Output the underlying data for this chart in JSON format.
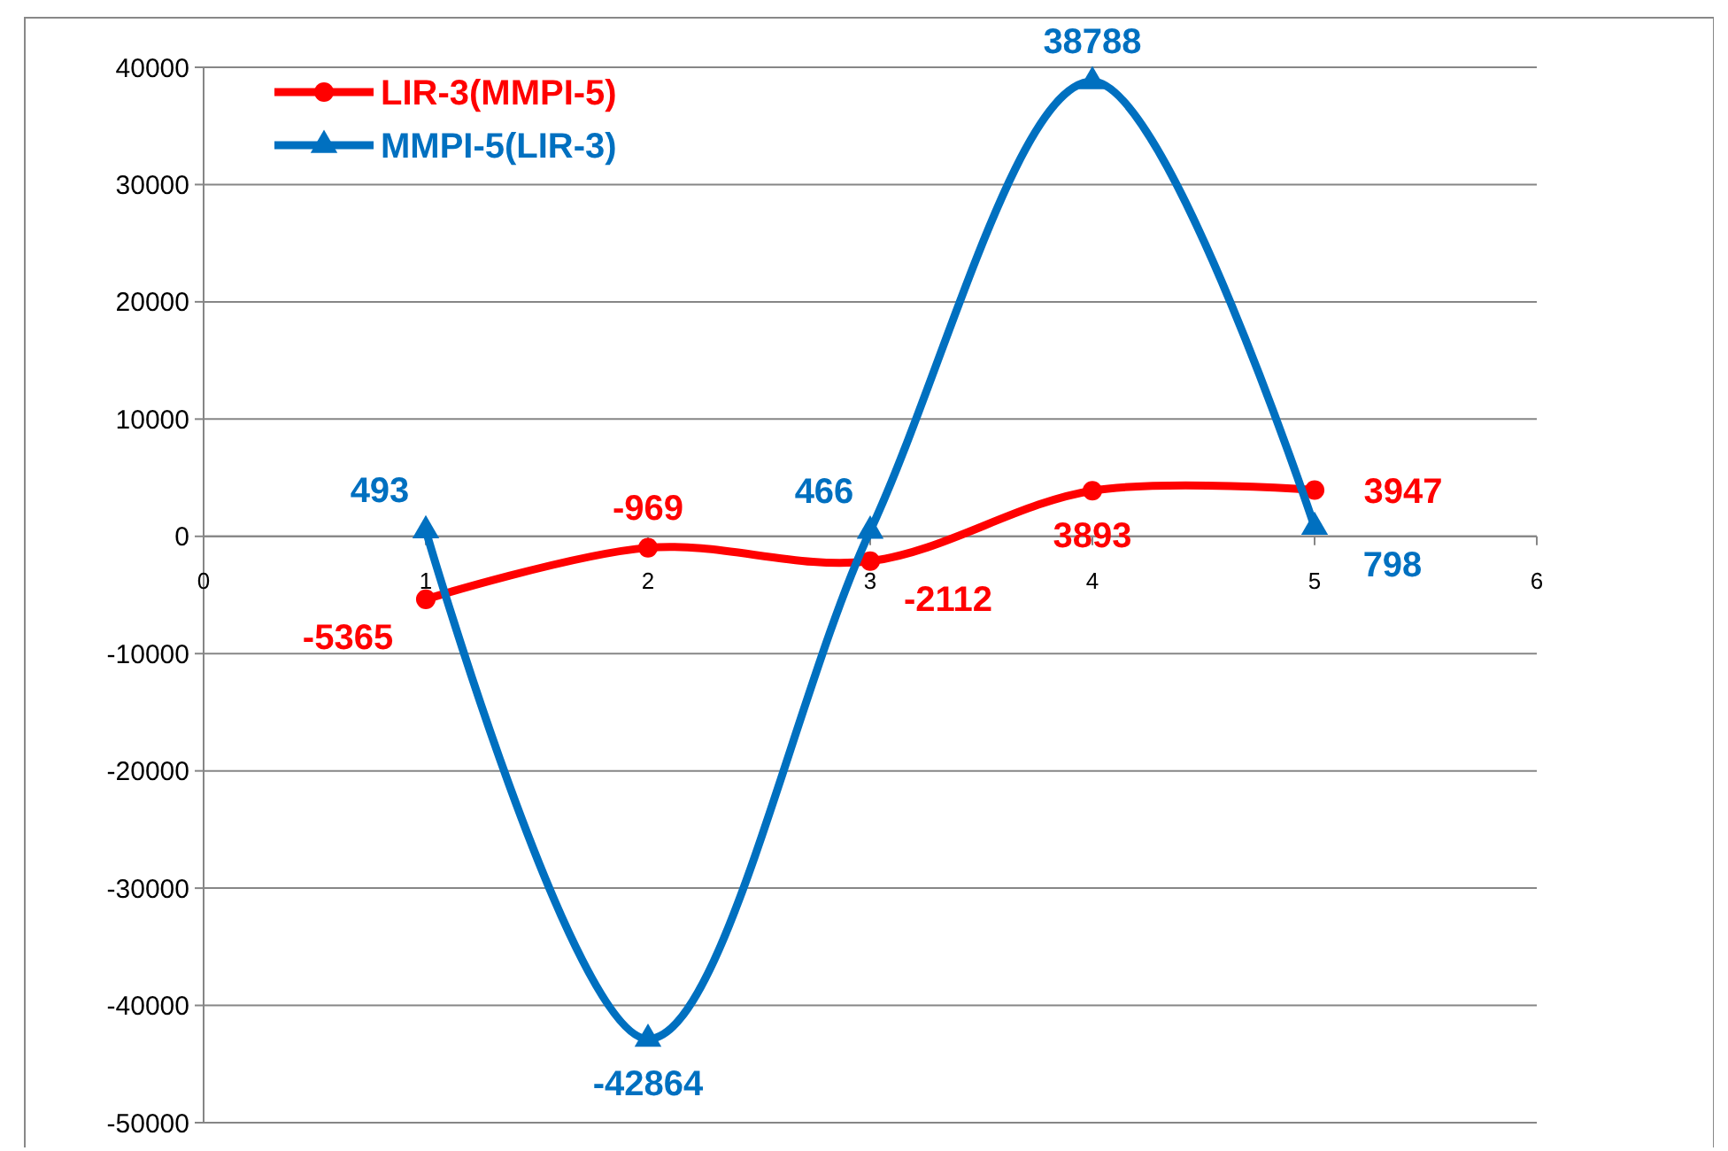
{
  "chart_data": {
    "type": "line",
    "x": [
      1,
      2,
      3,
      4,
      5
    ],
    "xlim": [
      0,
      6
    ],
    "xticks": [
      0,
      1,
      2,
      3,
      4,
      5,
      6
    ],
    "ylim": [
      -50000,
      40000
    ],
    "yticks": [
      -50000,
      -40000,
      -30000,
      -20000,
      -10000,
      0,
      10000,
      20000,
      30000,
      40000
    ],
    "grid": "y",
    "legend": "top left",
    "data_labels": true,
    "series": [
      {
        "name": "LIR-3(MMPI-5)",
        "color": "#ff0000",
        "marker": "circle",
        "values": [
          -5365,
          -969,
          -2112,
          3893,
          3947
        ]
      },
      {
        "name": "MMPI-5(LIR-3)",
        "color": "#0070c0",
        "marker": "triangle",
        "values": [
          493,
          -42864,
          466,
          38788,
          798
        ]
      }
    ]
  }
}
